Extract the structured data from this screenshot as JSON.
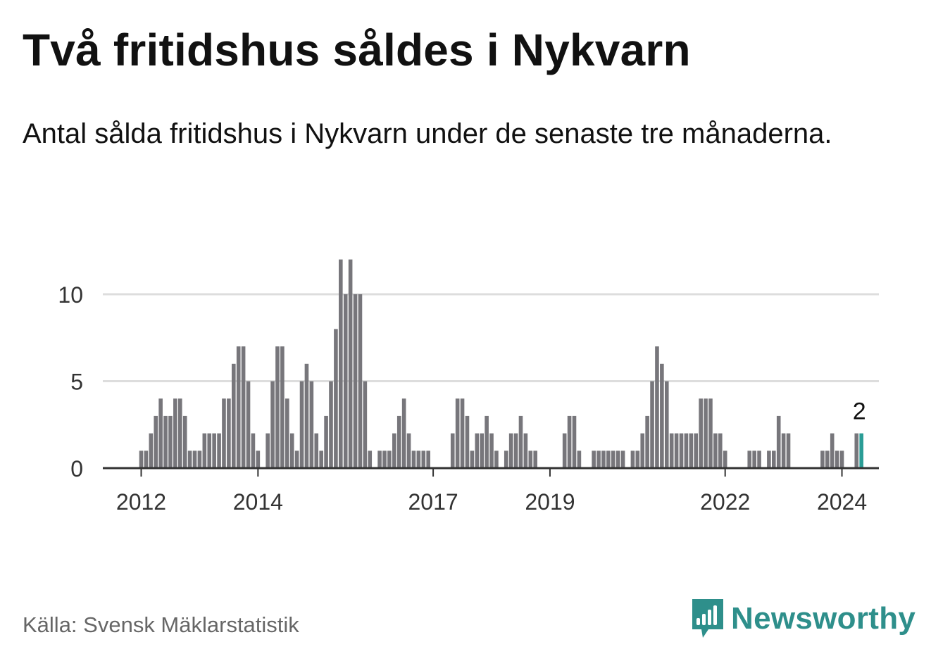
{
  "header": {
    "title": "Två fritidshus såldes i Nykvarn",
    "subtitle": "Antal sålda fritidshus i Nykvarn under de senaste tre månaderna."
  },
  "footer": {
    "source": "Källa: Svensk Mäklarstatistik",
    "brand": "Newsworthy"
  },
  "colors": {
    "bar": "#77767b",
    "highlight": "#2a9d96",
    "grid": "#dddddd",
    "axis": "#333333",
    "brand": "#2e8f8b"
  },
  "chart_data": {
    "type": "bar",
    "ylim": [
      0,
      12
    ],
    "yticks": [
      0,
      5,
      10
    ],
    "xticks": [
      {
        "label": "2012",
        "index": 0
      },
      {
        "label": "2014",
        "index": 24
      },
      {
        "label": "2017",
        "index": 60
      },
      {
        "label": "2019",
        "index": 84
      },
      {
        "label": "2022",
        "index": 120
      },
      {
        "label": "2024",
        "index": 144
      }
    ],
    "highlight_label": "2",
    "values": [
      1,
      1,
      2,
      3,
      4,
      3,
      3,
      4,
      4,
      3,
      1,
      1,
      1,
      2,
      2,
      2,
      2,
      4,
      4,
      6,
      7,
      7,
      5,
      2,
      1,
      0,
      2,
      5,
      7,
      7,
      4,
      2,
      1,
      5,
      6,
      5,
      2,
      1,
      3,
      5,
      8,
      12,
      10,
      12,
      10,
      10,
      5,
      1,
      0,
      1,
      1,
      1,
      2,
      3,
      4,
      2,
      1,
      1,
      1,
      1,
      0,
      0,
      0,
      0,
      2,
      4,
      4,
      3,
      1,
      2,
      2,
      3,
      2,
      1,
      0,
      1,
      2,
      2,
      3,
      2,
      1,
      1,
      0,
      0,
      0,
      0,
      0,
      2,
      3,
      3,
      1,
      0,
      0,
      1,
      1,
      1,
      1,
      1,
      1,
      1,
      0,
      1,
      1,
      2,
      3,
      5,
      7,
      6,
      5,
      2,
      2,
      2,
      2,
      2,
      2,
      4,
      4,
      4,
      2,
      2,
      1,
      0,
      0,
      0,
      0,
      1,
      1,
      1,
      0,
      1,
      1,
      3,
      2,
      2,
      0,
      0,
      0,
      0,
      0,
      0,
      1,
      1,
      2,
      1,
      1,
      0,
      0,
      2,
      2
    ]
  }
}
